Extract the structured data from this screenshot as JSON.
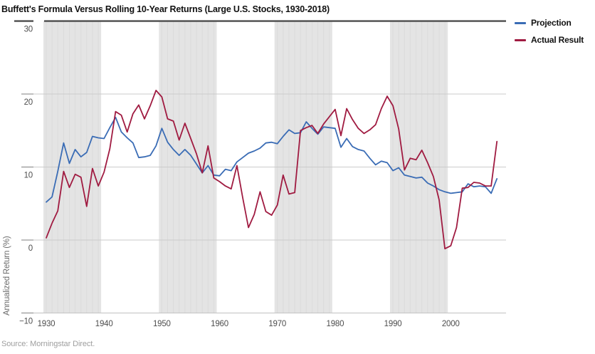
{
  "header": {
    "title": "Buffett's Formula Versus Rolling 10-Year Returns (Large U.S. Stocks, 1930-2018)"
  },
  "legend": {
    "items": [
      {
        "label": "Projection",
        "color": "#3a6cb5"
      },
      {
        "label": "Actual Result",
        "color": "#a01b41"
      }
    ]
  },
  "footer": {
    "source": "Source: Morningstar Direct."
  },
  "chart_data": {
    "type": "line",
    "title": "Buffett's Formula Versus Rolling 10-Year Returns (Large U.S. Stocks, 1930-2018)",
    "xlabel": "",
    "ylabel": "Annualized Return (%)",
    "x_start": 1930,
    "x_end": 2008,
    "ylim": [
      -10,
      30
    ],
    "yticks": [
      30,
      20,
      10,
      0,
      -10
    ],
    "xticks": [
      1930,
      1940,
      1950,
      1960,
      1970,
      1980,
      1990,
      2000
    ],
    "shaded_decades": [
      [
        1929.5,
        1939.5
      ],
      [
        1949.5,
        1959.5
      ],
      [
        1969.5,
        1979.5
      ],
      [
        1989.5,
        1999.5
      ]
    ],
    "grid_on": true,
    "legend_position": "top-right",
    "band_color": "#e4e4e4",
    "band_stripe_color": "#dbdbdb",
    "grid_color": "#cbcbcb",
    "axis_line_color": "#bfbfbf",
    "tick_color": "#7f7f7f",
    "top_border_color": "#4d4d4d",
    "axis_text_color": "#4d4d4d",
    "series": [
      {
        "name": "Projection",
        "color": "#3a6cb5",
        "values": [
          5.2,
          5.9,
          9.4,
          13.3,
          10.5,
          12.4,
          11.4,
          12.0,
          14.2,
          14.0,
          13.9,
          15.4,
          16.8,
          14.8,
          14.0,
          13.3,
          11.3,
          11.4,
          11.6,
          12.9,
          15.3,
          13.4,
          12.4,
          11.6,
          12.4,
          11.6,
          10.4,
          9.2,
          10.2,
          8.9,
          8.8,
          9.7,
          9.5,
          10.7,
          11.3,
          11.9,
          12.2,
          12.6,
          13.3,
          13.4,
          13.2,
          14.2,
          15.1,
          14.6,
          14.7,
          16.2,
          15.3,
          14.5,
          15.5,
          15.4,
          15.3,
          12.7,
          13.9,
          12.8,
          12.4,
          12.2,
          11.2,
          10.3,
          10.8,
          10.6,
          9.5,
          9.9,
          8.9,
          8.7,
          8.5,
          8.6,
          7.8,
          7.4,
          6.9,
          6.6,
          6.4,
          6.5,
          6.6,
          7.7,
          7.3,
          7.4,
          7.3,
          6.4,
          8.4
        ]
      },
      {
        "name": "Actual Result",
        "color": "#a01b41",
        "values": [
          0.3,
          2.3,
          4.0,
          9.4,
          7.2,
          9.0,
          8.6,
          4.6,
          9.8,
          7.4,
          9.3,
          12.5,
          17.6,
          17.1,
          14.8,
          17.3,
          18.5,
          16.6,
          18.4,
          20.5,
          19.6,
          16.6,
          16.3,
          13.7,
          16.0,
          13.9,
          11.8,
          9.2,
          12.9,
          8.5,
          8.0,
          7.4,
          7.0,
          10.2,
          5.8,
          1.7,
          3.5,
          6.6,
          3.9,
          3.4,
          4.8,
          8.9,
          6.3,
          6.5,
          15.0,
          15.4,
          15.7,
          14.6,
          15.9,
          16.9,
          17.9,
          14.3,
          18.0,
          16.5,
          15.3,
          14.6,
          15.1,
          15.8,
          18.0,
          19.7,
          18.4,
          15.2,
          9.6,
          11.2,
          11.0,
          12.3,
          10.6,
          8.7,
          5.5,
          -1.2,
          -0.8,
          1.7,
          7.1,
          7.2,
          7.9,
          7.8,
          7.4,
          7.4,
          13.5
        ]
      }
    ]
  }
}
